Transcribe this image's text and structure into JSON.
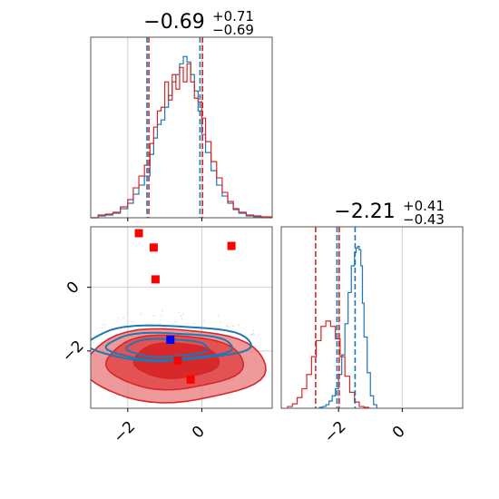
{
  "chart_data": [
    {
      "type": "histogram",
      "panel": "marginal-1",
      "title": {
        "main": "−0.69",
        "sup": "+0.71",
        "sub": "−0.69"
      },
      "xlim": [
        -3.0,
        1.9
      ],
      "grid": true,
      "series": [
        {
          "name": "",
          "color": "#1f77b4",
          "bin_edges": [
            -3.0,
            -2.8,
            -2.6,
            -2.4,
            -2.2,
            -2.0,
            -1.85,
            -1.7,
            -1.55,
            -1.4,
            -1.3,
            -1.2,
            -1.1,
            -1.0,
            -0.9,
            -0.8,
            -0.7,
            -0.6,
            -0.5,
            -0.4,
            -0.3,
            -0.2,
            -0.1,
            0.0,
            0.1,
            0.25,
            0.4,
            0.55,
            0.7,
            0.85,
            1.0,
            1.2,
            1.4,
            1.6,
            1.9
          ],
          "counts": [
            0,
            2,
            3,
            5,
            10,
            16,
            26,
            36,
            46,
            70,
            88,
            103,
            108,
            122,
            135,
            150,
            158,
            170,
            178,
            172,
            158,
            140,
            118,
            92,
            72,
            52,
            36,
            24,
            16,
            9,
            5,
            2,
            1,
            0
          ]
        },
        {
          "name": "",
          "color": "#d62728",
          "bin_edges": [
            -3.0,
            -2.8,
            -2.6,
            -2.4,
            -2.2,
            -2.0,
            -1.85,
            -1.7,
            -1.55,
            -1.4,
            -1.3,
            -1.2,
            -1.1,
            -1.0,
            -0.9,
            -0.8,
            -0.7,
            -0.6,
            -0.5,
            -0.4,
            -0.3,
            -0.2,
            -0.1,
            0.0,
            0.1,
            0.25,
            0.4,
            0.55,
            0.7,
            0.85,
            1.0,
            1.2,
            1.4,
            1.6,
            1.9
          ],
          "counts": [
            0,
            3,
            4,
            6,
            12,
            20,
            33,
            46,
            58,
            82,
            100,
            118,
            122,
            150,
            130,
            158,
            142,
            166,
            150,
            170,
            150,
            132,
            128,
            110,
            84,
            62,
            44,
            28,
            18,
            10,
            6,
            3,
            2,
            1
          ]
        }
      ],
      "quantile_lines": [
        {
          "x": -1.48,
          "color": "#1f77b4"
        },
        {
          "x": -1.43,
          "color": "#d62728"
        },
        {
          "x": -0.05,
          "color": "#1f77b4"
        },
        {
          "x": 0.02,
          "color": "#d62728"
        }
      ]
    },
    {
      "type": "histogram",
      "panel": "marginal-2",
      "title": {
        "main": "−2.21",
        "sup": "+0.41",
        "sub": "−0.43"
      },
      "xlim": [
        -3.8,
        1.9
      ],
      "xticks": [
        {
          "value": -2,
          "label": "−2"
        },
        {
          "value": 0,
          "label": "0"
        }
      ],
      "grid": true,
      "series": [
        {
          "name": "",
          "color": "#1f77b4",
          "bin_edges": [
            -2.6,
            -2.5,
            -2.4,
            -2.3,
            -2.2,
            -2.1,
            -2.0,
            -1.9,
            -1.8,
            -1.7,
            -1.6,
            -1.5,
            -1.45,
            -1.4,
            -1.35,
            -1.3,
            -1.25,
            -1.2,
            -1.1,
            -1.0,
            -0.9,
            -0.8
          ],
          "counts": [
            1,
            2,
            4,
            8,
            14,
            22,
            38,
            60,
            95,
            130,
            160,
            175,
            180,
            182,
            178,
            160,
            118,
            80,
            40,
            14,
            4
          ]
        },
        {
          "name": "",
          "color": "#d62728",
          "bin_edges": [
            -3.6,
            -3.45,
            -3.3,
            -3.15,
            -3.0,
            -2.85,
            -2.7,
            -2.55,
            -2.4,
            -2.25,
            -2.1,
            -1.95,
            -1.8,
            -1.65,
            -1.5,
            -1.35,
            -1.2,
            -1.05
          ],
          "counts": [
            2,
            5,
            12,
            22,
            38,
            58,
            76,
            92,
            98,
            92,
            78,
            58,
            36,
            18,
            7,
            2,
            1
          ]
        }
      ],
      "quantile_lines": [
        {
          "x": -2.72,
          "color": "#d62728"
        },
        {
          "x": -2.05,
          "color": "#1f77b4"
        },
        {
          "x": -1.98,
          "color": "#d62728"
        },
        {
          "x": -1.48,
          "color": "#1f77b4"
        }
      ]
    },
    {
      "type": "scatter",
      "panel": "joint",
      "xlim": [
        -3.0,
        1.9
      ],
      "ylim": [
        -3.8,
        1.9
      ],
      "xticks": [
        {
          "value": -2,
          "label": "−2"
        },
        {
          "value": 0,
          "label": "0"
        }
      ],
      "yticks": [
        {
          "value": -2,
          "label": "−2"
        },
        {
          "value": 0,
          "label": "0"
        }
      ],
      "grid": true,
      "red_markers": [
        {
          "x": -1.7,
          "y": 1.7
        },
        {
          "x": -1.3,
          "y": 1.25
        },
        {
          "x": 0.8,
          "y": 1.3
        },
        {
          "x": -1.25,
          "y": 0.25
        },
        {
          "x": -0.65,
          "y": -2.3
        },
        {
          "x": -0.3,
          "y": -2.9
        }
      ],
      "blue_markers": [
        {
          "x": -0.85,
          "y": -1.65
        }
      ],
      "red_contours": [
        {
          "cx": -0.75,
          "cy": -2.45,
          "rx": 2.45,
          "ry": 1.15,
          "fill_opacity": 0.55
        },
        {
          "cx": -0.75,
          "cy": -2.35,
          "rx": 1.85,
          "ry": 0.85,
          "fill_opacity": 0.75
        },
        {
          "cx": -0.7,
          "cy": -2.3,
          "rx": 1.15,
          "ry": 0.55,
          "fill_opacity": 0.95
        }
      ],
      "blue_contours": [
        {
          "cx": -0.9,
          "cy": -1.75,
          "rx": 2.2,
          "ry": 0.55
        },
        {
          "cx": -0.9,
          "cy": -1.85,
          "rx": 1.7,
          "ry": 0.42
        },
        {
          "cx": -0.95,
          "cy": -1.9,
          "rx": 1.1,
          "ry": 0.28
        }
      ]
    }
  ]
}
